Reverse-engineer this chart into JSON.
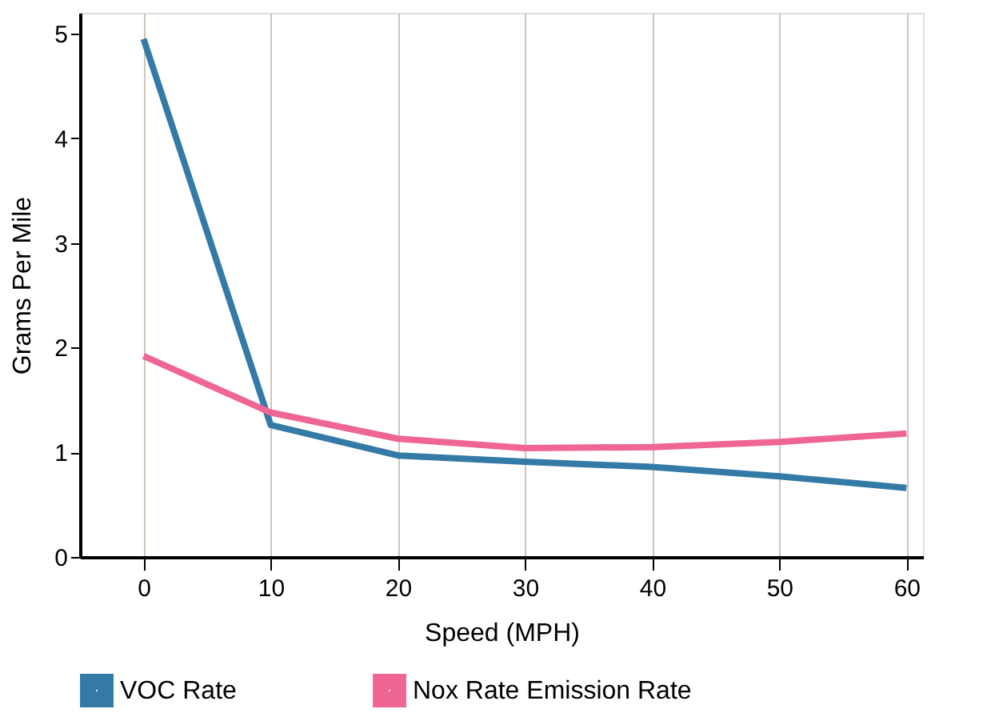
{
  "chart_data": {
    "type": "line",
    "xlabel": "Speed (MPH)",
    "ylabel": "Grams Per Mile",
    "x": [
      0,
      10,
      20,
      30,
      40,
      50,
      60
    ],
    "series": [
      {
        "name": "VOC Rate",
        "color": "#337aa6",
        "values": [
          4.95,
          1.26,
          0.97,
          0.91,
          0.86,
          0.77,
          0.66
        ]
      },
      {
        "name": "Nox Rate Emission Rate",
        "color": "#ef6593",
        "values": [
          1.92,
          1.38,
          1.13,
          1.04,
          1.05,
          1.1,
          1.18
        ]
      }
    ],
    "xlim": [
      -5,
      61.3
    ],
    "xticks": [
      0,
      10,
      20,
      30,
      40,
      50,
      60
    ],
    "ylim": [
      0,
      5.2
    ],
    "yticks": [
      0,
      1,
      2,
      3,
      4,
      5
    ],
    "grid": "x",
    "legend": "bottom",
    "marker": "none",
    "line_style": "solid"
  }
}
